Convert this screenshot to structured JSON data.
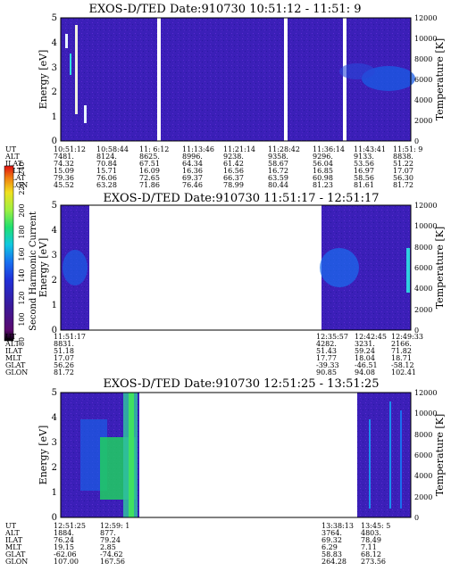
{
  "chart_data": [
    {
      "type": "heatmap",
      "title": "EXOS-D/TED   Date:910730  10:51:12 - 11:51: 9",
      "ylabel": "Energy [eV]",
      "y2label": "Temperature [K]",
      "ylim": [
        0,
        5
      ],
      "y2lim": [
        0,
        12000
      ],
      "yticks": [
        "0",
        "1",
        "2",
        "3",
        "4",
        "5"
      ],
      "y2ticks": [
        "0",
        "2000",
        "4000",
        "6000",
        "8000",
        "10000",
        "12000"
      ],
      "row_labels": [
        "UT",
        "ALT",
        "ILAT",
        "MLT",
        "GLAT",
        "GLON"
      ],
      "columns": [
        {
          "UT": "10:51:12",
          "ALT": "7481.",
          "ILAT": "74.32",
          "MLT": "15.09",
          "GLAT": "79.36",
          "GLON": "45.52"
        },
        {
          "UT": "10:58:44",
          "ALT": "8124.",
          "ILAT": "70.84",
          "MLT": "15.71",
          "GLAT": "76.06",
          "GLON": "63.28"
        },
        {
          "UT": "11: 6:12",
          "ALT": "8625.",
          "ILAT": "67.51",
          "MLT": "16.09",
          "GLAT": "72.65",
          "GLON": "71.86"
        },
        {
          "UT": "11:13:46",
          "ALT": "8996.",
          "ILAT": "64.34",
          "MLT": "16.36",
          "GLAT": "69.37",
          "GLON": "76.46"
        },
        {
          "UT": "11:21:14",
          "ALT": "9238.",
          "ILAT": "61.42",
          "MLT": "16.56",
          "GLAT": "66.37",
          "GLON": "78.99"
        },
        {
          "UT": "11:28:42",
          "ALT": "9358.",
          "ILAT": "58.67",
          "MLT": "16.72",
          "GLAT": "63.59",
          "GLON": "80.44"
        },
        {
          "UT": "11:36:14",
          "ALT": "9296.",
          "ILAT": "56.04",
          "MLT": "16.85",
          "GLAT": "60.98",
          "GLON": "81.23"
        },
        {
          "UT": "11:43:41",
          "ALT": "9133.",
          "ILAT": "53.56",
          "MLT": "16.97",
          "GLAT": "58.56",
          "GLON": "81.61"
        },
        {
          "UT": "11:51: 9",
          "ALT": "8838.",
          "ILAT": "51.22",
          "MLT": "17.07",
          "GLAT": "56.30",
          "GLON": "81.72"
        }
      ]
    },
    {
      "type": "heatmap",
      "title": "EXOS-D/TED   Date:910730  11:51:17 - 12:51:17",
      "ylabel": "Energy [eV]",
      "y2label": "Temperature [K]",
      "ylim": [
        0,
        5
      ],
      "y2lim": [
        0,
        12000
      ],
      "yticks": [
        "0",
        "1",
        "2",
        "3",
        "4",
        "5"
      ],
      "y2ticks": [
        "0",
        "2000",
        "4000",
        "6000",
        "8000",
        "10000",
        "12000"
      ],
      "row_labels": [
        "UT",
        "ALT",
        "ILAT",
        "MLT",
        "GLAT",
        "GLON"
      ],
      "columns": [
        {
          "UT": "11:51:17",
          "ALT": "8831.",
          "ILAT": "51.18",
          "MLT": "17.07",
          "GLAT": "56.26",
          "GLON": "81.72"
        },
        {
          "UT": "12:35:57",
          "ALT": "4282.",
          "ILAT": "51.43",
          "MLT": "17.77",
          "GLAT": "-39.33",
          "GLON": "90.85"
        },
        {
          "UT": "12:42:45",
          "ALT": "3231.",
          "ILAT": "59.24",
          "MLT": "18.04",
          "GLAT": "-46.51",
          "GLON": "94.08"
        },
        {
          "UT": "12:49:33",
          "ALT": "2166.",
          "ILAT": "71.82",
          "MLT": "18.71",
          "GLAT": "-58.12",
          "GLON": "102.41"
        }
      ]
    },
    {
      "type": "heatmap",
      "title": "EXOS-D/TED   Date:910730  12:51:25 - 13:51:25",
      "ylabel": "Energy [eV]",
      "y2label": "Temperature [K]",
      "ylim": [
        0,
        5
      ],
      "y2lim": [
        0,
        12000
      ],
      "yticks": [
        "0",
        "1",
        "2",
        "3",
        "4",
        "5"
      ],
      "y2ticks": [
        "0",
        "2000",
        "4000",
        "6000",
        "8000",
        "10000",
        "12000"
      ],
      "row_labels": [
        "UT",
        "ALT",
        "ILAT",
        "MLT",
        "GLAT",
        "GLON"
      ],
      "columns": [
        {
          "UT": "12:51:25",
          "ALT": "1884.",
          "ILAT": "76.24",
          "MLT": "19.15",
          "GLAT": "-62.06",
          "GLON": "107.00"
        },
        {
          "UT": "12:59: 1",
          "ALT": "877.",
          "ILAT": "79.24",
          "MLT": "2.85",
          "GLAT": "-74.62",
          "GLON": "167.56"
        },
        {
          "UT": "13:38:13",
          "ALT": "3764.",
          "ILAT": "69.32",
          "MLT": "6.29",
          "GLAT": "58.83",
          "GLON": "264.28"
        },
        {
          "UT": "13:45: 5",
          "ALT": "4803.",
          "ILAT": "78.49",
          "MLT": "7.11",
          "GLAT": "68.12",
          "GLON": "273.56"
        }
      ]
    }
  ],
  "colorbar": {
    "label": "Second Harmonic Current",
    "ticks": [
      "80",
      "100",
      "120",
      "140",
      "160",
      "180",
      "200",
      "220",
      "240"
    ],
    "colors": [
      "#000000",
      "#5a0a6e",
      "#3a1a9a",
      "#2030d8",
      "#1870f0",
      "#10c8e0",
      "#20e070",
      "#a0f040",
      "#f0e020",
      "#f08010",
      "#e01010"
    ]
  }
}
